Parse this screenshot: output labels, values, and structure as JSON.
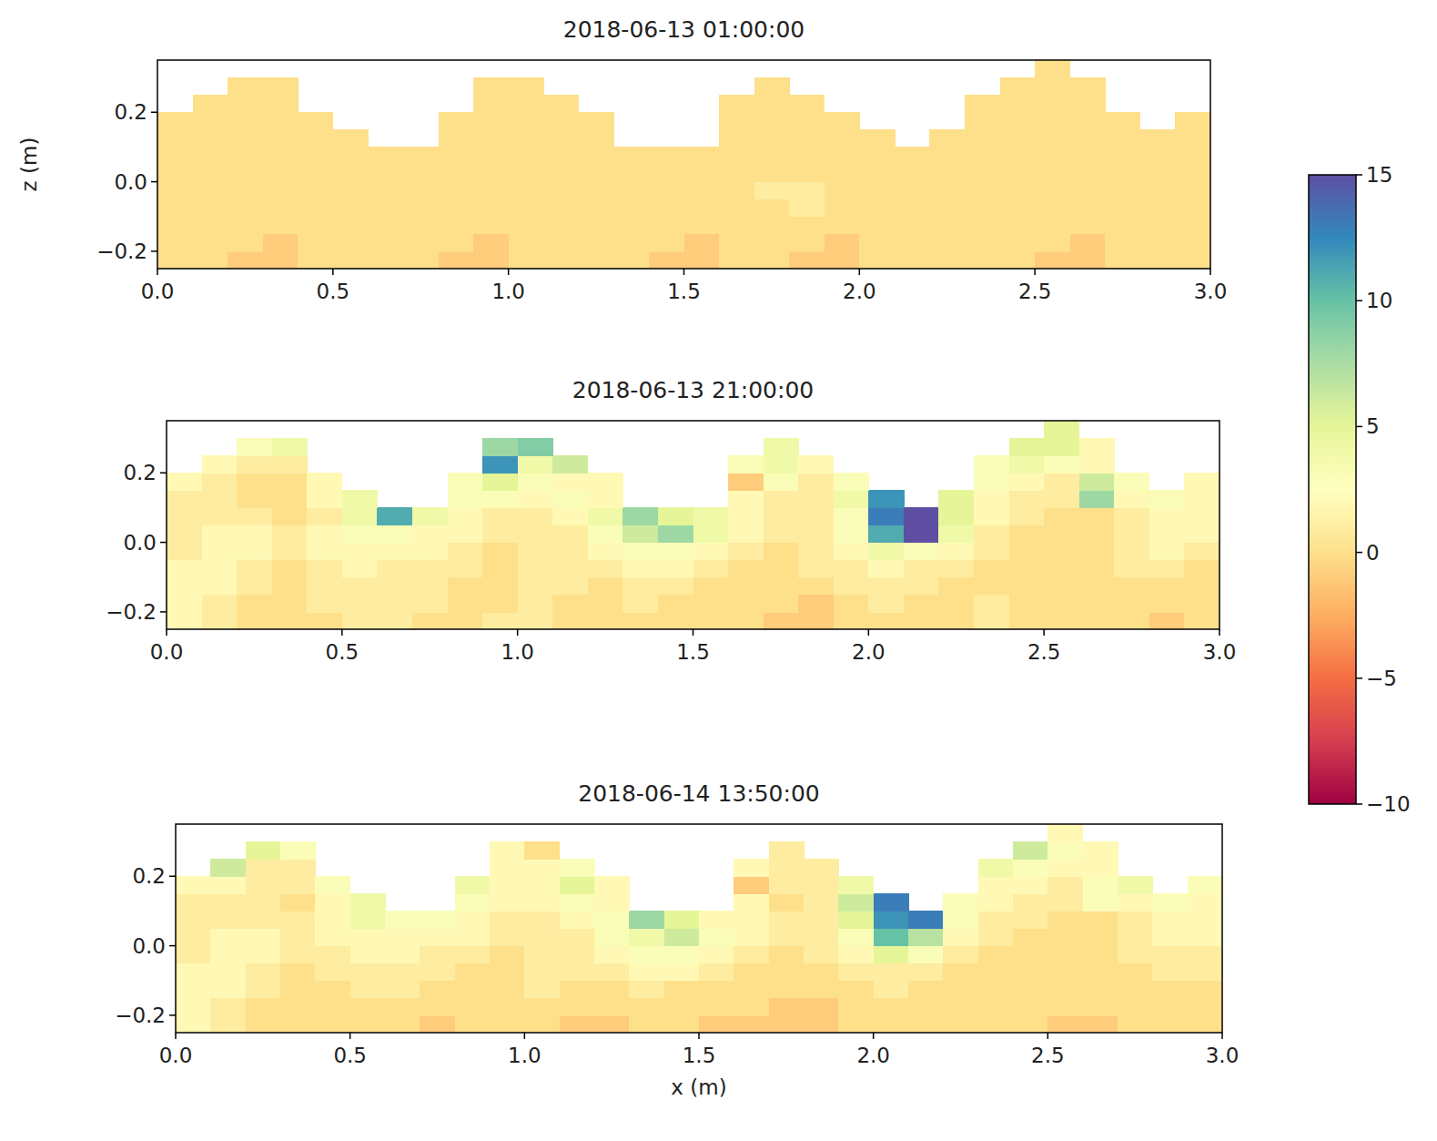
{
  "chart_data": [
    {
      "type": "heatmap",
      "title": "2018-06-13 01:00:00",
      "ylabel": "z (m)",
      "xlim": [
        0,
        3
      ],
      "ylim": [
        -0.25,
        0.35
      ],
      "xticks": [
        {
          "value": 0,
          "label": "0.0"
        },
        0.5,
        {
          "value": 1,
          "label": "1.0"
        },
        1.5,
        {
          "value": 2,
          "label": "2.0"
        },
        2.5,
        {
          "value": 3,
          "label": "3.0"
        }
      ],
      "yticks": [
        {
          "value": -0.2,
          "label": "−0.2"
        },
        {
          "value": 0,
          "label": "0.0"
        },
        0.2
      ],
      "colorbar_lim": [
        -10,
        15
      ],
      "colorbar_ticks": [
        15,
        10,
        5,
        0,
        {
          "value": -5,
          "label": "−5"
        },
        {
          "value": -10,
          "label": "−10"
        }
      ],
      "x": [
        0.05,
        0.15,
        0.25,
        0.35,
        0.45,
        0.55,
        0.65,
        0.75,
        0.85,
        0.95,
        1.05,
        1.15,
        1.25,
        1.35,
        1.45,
        1.55,
        1.65,
        1.75,
        1.85,
        1.95,
        2.05,
        2.15,
        2.25,
        2.35,
        2.45,
        2.55,
        2.65,
        2.75,
        2.85,
        2.95
      ],
      "y": [
        -0.225,
        -0.175,
        -0.125,
        -0.075,
        -0.025,
        0.025,
        0.075,
        0.125,
        0.175,
        0.225,
        0.275,
        0.325
      ],
      "values": [
        [
          0,
          0,
          -1,
          -1,
          0,
          0,
          0,
          0,
          -1,
          -1,
          0,
          0,
          0,
          0,
          -1,
          -1,
          0,
          0,
          -1,
          -1,
          0,
          0,
          0,
          0,
          0,
          -1,
          -1,
          0,
          0,
          0
        ],
        [
          0,
          0,
          0,
          -1,
          0,
          0,
          0,
          0,
          0,
          -1,
          0,
          0,
          0,
          0,
          0,
          -1,
          0,
          0,
          0,
          -1,
          0,
          0,
          0,
          0,
          0,
          0,
          -1,
          0,
          0,
          0
        ],
        [
          0,
          0,
          0,
          0,
          0,
          0,
          0,
          0,
          0,
          0,
          0,
          0,
          0,
          0,
          0,
          0,
          0,
          0,
          0,
          0,
          0,
          0,
          0,
          0,
          0,
          0,
          0,
          0,
          0,
          0
        ],
        [
          0,
          0,
          0,
          0,
          0,
          0,
          0,
          0,
          0,
          0,
          0,
          0,
          0,
          0,
          0,
          0,
          0,
          0,
          1,
          0,
          0,
          0,
          0,
          0,
          0,
          0,
          0,
          0,
          0,
          0
        ],
        [
          0,
          0,
          0,
          0,
          0,
          0,
          0,
          0,
          0,
          0,
          0,
          0,
          0,
          0,
          0,
          0,
          0,
          1,
          1,
          0,
          0,
          0,
          0,
          0,
          0,
          0,
          0,
          0,
          0,
          0
        ],
        [
          0,
          0,
          0,
          0,
          0,
          0,
          0,
          0,
          0,
          0,
          0,
          0,
          0,
          0,
          0,
          0,
          0,
          0,
          0,
          0,
          0,
          0,
          0,
          0,
          0,
          0,
          0,
          0,
          0,
          0
        ],
        [
          0,
          0,
          0,
          0,
          0,
          0,
          0,
          0,
          0,
          0,
          0,
          0,
          0,
          0,
          0,
          0,
          0,
          0,
          0,
          0,
          0,
          0,
          0,
          0,
          0,
          0,
          0,
          0,
          0,
          0
        ],
        [
          0,
          0,
          0,
          0,
          0,
          0,
          null,
          null,
          0,
          0,
          0,
          0,
          0,
          null,
          null,
          null,
          0,
          0,
          0,
          0,
          0,
          null,
          0,
          0,
          0,
          0,
          0,
          0,
          0,
          0
        ],
        [
          0,
          0,
          0,
          0,
          0,
          null,
          null,
          null,
          0,
          0,
          0,
          0,
          0,
          null,
          null,
          null,
          0,
          0,
          0,
          0,
          null,
          null,
          null,
          0,
          0,
          0,
          0,
          0,
          null,
          0
        ],
        [
          null,
          0,
          0,
          0,
          null,
          null,
          null,
          null,
          null,
          0,
          0,
          0,
          null,
          null,
          null,
          null,
          0,
          0,
          0,
          null,
          null,
          null,
          null,
          0,
          0,
          0,
          0,
          null,
          null,
          null
        ],
        [
          null,
          null,
          0,
          0,
          null,
          null,
          null,
          null,
          null,
          0,
          0,
          null,
          null,
          null,
          null,
          null,
          null,
          0,
          null,
          null,
          null,
          null,
          null,
          null,
          0,
          0,
          0,
          null,
          null,
          null
        ],
        [
          null,
          null,
          null,
          null,
          null,
          null,
          null,
          null,
          null,
          null,
          null,
          null,
          null,
          null,
          null,
          null,
          null,
          null,
          null,
          null,
          null,
          null,
          null,
          null,
          null,
          0,
          null,
          null,
          null,
          null
        ]
      ]
    },
    {
      "type": "heatmap",
      "title": "2018-06-13 21:00:00",
      "xlim": [
        0,
        3
      ],
      "ylim": [
        -0.25,
        0.35
      ],
      "xticks": [
        {
          "value": 0,
          "label": "0.0"
        },
        0.5,
        {
          "value": 1,
          "label": "1.0"
        },
        1.5,
        {
          "value": 2,
          "label": "2.0"
        },
        2.5,
        {
          "value": 3,
          "label": "3.0"
        }
      ],
      "yticks": [
        {
          "value": -0.2,
          "label": "−0.2"
        },
        {
          "value": 0,
          "label": "0.0"
        },
        0.2
      ],
      "x": [
        0.05,
        0.15,
        0.25,
        0.35,
        0.45,
        0.55,
        0.65,
        0.75,
        0.85,
        0.95,
        1.05,
        1.15,
        1.25,
        1.35,
        1.45,
        1.55,
        1.65,
        1.75,
        1.85,
        1.95,
        2.05,
        2.15,
        2.25,
        2.35,
        2.45,
        2.55,
        2.65,
        2.75,
        2.85,
        2.95
      ],
      "y": [
        -0.225,
        -0.175,
        -0.125,
        -0.075,
        -0.025,
        0.025,
        0.075,
        0.125,
        0.175,
        0.225,
        0.275,
        0.325
      ],
      "values": [
        [
          2,
          1,
          0,
          0,
          0,
          1,
          1,
          0,
          0,
          1,
          1,
          0,
          0,
          0,
          0,
          0,
          0,
          -1,
          -1,
          0,
          0,
          0,
          0,
          1,
          0,
          0,
          0,
          0,
          -1,
          0
        ],
        [
          2,
          1,
          0,
          0,
          1,
          1,
          1,
          1,
          0,
          0,
          1,
          0,
          0,
          1,
          0,
          0,
          0,
          0,
          -1,
          0,
          1,
          0,
          0,
          1,
          0,
          0,
          0,
          0,
          0,
          0
        ],
        [
          2,
          2,
          1,
          0,
          1,
          1,
          1,
          1,
          0,
          0,
          1,
          1,
          0,
          1,
          1,
          0,
          0,
          0,
          0,
          1,
          1,
          1,
          0,
          0,
          0,
          0,
          0,
          0,
          0,
          0
        ],
        [
          2,
          2,
          1,
          0,
          1,
          2,
          1,
          1,
          1,
          0,
          1,
          1,
          1,
          2,
          2,
          1,
          0,
          0,
          1,
          1,
          2,
          1,
          1,
          0,
          0,
          0,
          0,
          1,
          1,
          0
        ],
        [
          1,
          2,
          2,
          1,
          2,
          2,
          2,
          2,
          1,
          0,
          1,
          1,
          2,
          3,
          3,
          2,
          1,
          0,
          1,
          2,
          4,
          3,
          2,
          1,
          0,
          0,
          0,
          1,
          2,
          1
        ],
        [
          1,
          2,
          2,
          1,
          2,
          3,
          3,
          2,
          2,
          1,
          1,
          1,
          3,
          6,
          8,
          4,
          2,
          1,
          1,
          3,
          11,
          15,
          4,
          1,
          0,
          0,
          0,
          1,
          2,
          2
        ],
        [
          1,
          1,
          1,
          0,
          1,
          4,
          11,
          4,
          2,
          1,
          1,
          2,
          4,
          8,
          5,
          4,
          2,
          1,
          1,
          3,
          13,
          16,
          5,
          2,
          1,
          0,
          0,
          1,
          2,
          2
        ],
        [
          1,
          1,
          0,
          0,
          2,
          4,
          null,
          null,
          3,
          3,
          2,
          3,
          2,
          null,
          null,
          null,
          2,
          1,
          1,
          4,
          12,
          null,
          5,
          2,
          1,
          1,
          8,
          2,
          3,
          2
        ],
        [
          2,
          1,
          0,
          0,
          2,
          null,
          null,
          null,
          3,
          5,
          3,
          2,
          2,
          null,
          null,
          null,
          -1,
          3,
          1,
          3,
          null,
          null,
          null,
          3,
          2,
          1,
          6,
          3,
          null,
          2
        ],
        [
          null,
          2,
          1,
          1,
          null,
          null,
          null,
          null,
          null,
          12,
          4,
          6,
          null,
          null,
          null,
          null,
          3,
          4,
          2,
          null,
          null,
          null,
          null,
          3,
          4,
          3,
          2,
          null,
          null,
          null
        ],
        [
          null,
          null,
          3,
          4,
          null,
          null,
          null,
          null,
          null,
          8,
          9,
          null,
          null,
          null,
          null,
          null,
          null,
          4,
          null,
          null,
          null,
          null,
          null,
          null,
          5,
          5,
          2,
          null,
          null,
          null
        ],
        [
          null,
          null,
          null,
          null,
          null,
          null,
          null,
          null,
          null,
          null,
          null,
          null,
          null,
          null,
          null,
          null,
          null,
          null,
          null,
          null,
          null,
          null,
          null,
          null,
          null,
          5,
          null,
          null,
          null,
          null
        ]
      ]
    },
    {
      "type": "heatmap",
      "title": "2018-06-14 13:50:00",
      "xlabel": "x (m)",
      "xlim": [
        0,
        3
      ],
      "ylim": [
        -0.25,
        0.35
      ],
      "xticks": [
        {
          "value": 0,
          "label": "0.0"
        },
        0.5,
        {
          "value": 1,
          "label": "1.0"
        },
        1.5,
        {
          "value": 2,
          "label": "2.0"
        },
        2.5,
        {
          "value": 3,
          "label": "3.0"
        }
      ],
      "yticks": [
        {
          "value": -0.2,
          "label": "−0.2"
        },
        {
          "value": 0,
          "label": "0.0"
        },
        0.2
      ],
      "x": [
        0.05,
        0.15,
        0.25,
        0.35,
        0.45,
        0.55,
        0.65,
        0.75,
        0.85,
        0.95,
        1.05,
        1.15,
        1.25,
        1.35,
        1.45,
        1.55,
        1.65,
        1.75,
        1.85,
        1.95,
        2.05,
        2.15,
        2.25,
        2.35,
        2.45,
        2.55,
        2.65,
        2.75,
        2.85,
        2.95
      ],
      "y": [
        -0.225,
        -0.175,
        -0.125,
        -0.075,
        -0.025,
        0.025,
        0.075,
        0.125,
        0.175,
        0.225,
        0.275,
        0.325
      ],
      "values": [
        [
          2,
          1,
          0,
          0,
          0,
          0,
          0,
          -1,
          0,
          0,
          0,
          -1,
          -1,
          0,
          0,
          -1,
          -1,
          -1,
          -1,
          0,
          0,
          0,
          0,
          0,
          0,
          -1,
          -1,
          0,
          0,
          0
        ],
        [
          2,
          1,
          0,
          0,
          0,
          0,
          0,
          0,
          0,
          0,
          0,
          0,
          0,
          0,
          0,
          0,
          0,
          -1,
          -1,
          0,
          0,
          0,
          0,
          0,
          0,
          0,
          0,
          0,
          0,
          0
        ],
        [
          2,
          2,
          1,
          0,
          0,
          1,
          1,
          0,
          0,
          0,
          1,
          0,
          0,
          1,
          0,
          0,
          0,
          0,
          0,
          0,
          1,
          0,
          0,
          0,
          0,
          0,
          0,
          0,
          0,
          0
        ],
        [
          2,
          2,
          1,
          0,
          1,
          1,
          1,
          1,
          0,
          0,
          1,
          1,
          1,
          2,
          2,
          1,
          0,
          0,
          0,
          1,
          1,
          1,
          0,
          0,
          0,
          0,
          0,
          0,
          1,
          1
        ],
        [
          1,
          2,
          2,
          1,
          1,
          2,
          2,
          1,
          1,
          0,
          1,
          1,
          2,
          3,
          3,
          2,
          1,
          0,
          1,
          2,
          5,
          3,
          1,
          0,
          0,
          0,
          0,
          1,
          1,
          1
        ],
        [
          1,
          2,
          2,
          1,
          2,
          2,
          2,
          2,
          2,
          1,
          1,
          1,
          3,
          4,
          6,
          3,
          2,
          1,
          1,
          3,
          10,
          7,
          2,
          1,
          0,
          0,
          0,
          1,
          2,
          2
        ],
        [
          1,
          1,
          1,
          1,
          2,
          4,
          3,
          3,
          2,
          1,
          1,
          2,
          3,
          8,
          5,
          2,
          2,
          1,
          1,
          5,
          12,
          13,
          3,
          1,
          1,
          0,
          0,
          1,
          2,
          2
        ],
        [
          1,
          1,
          1,
          0,
          2,
          4,
          null,
          null,
          3,
          2,
          2,
          3,
          2,
          null,
          null,
          null,
          2,
          0,
          1,
          6,
          13,
          null,
          3,
          2,
          1,
          1,
          3,
          2,
          3,
          2
        ],
        [
          2,
          2,
          1,
          1,
          3,
          null,
          null,
          null,
          4,
          2,
          2,
          5,
          2,
          null,
          null,
          null,
          -1,
          1,
          1,
          4,
          null,
          null,
          null,
          2,
          2,
          1,
          3,
          4,
          null,
          3
        ],
        [
          null,
          6,
          1,
          1,
          null,
          null,
          null,
          null,
          null,
          2,
          2,
          3,
          null,
          null,
          null,
          null,
          2,
          1,
          1,
          null,
          null,
          null,
          null,
          4,
          3,
          2,
          2,
          null,
          null,
          null
        ],
        [
          null,
          null,
          5,
          3,
          null,
          null,
          null,
          null,
          null,
          2,
          0,
          null,
          null,
          null,
          null,
          null,
          null,
          1,
          null,
          null,
          null,
          null,
          null,
          null,
          6,
          3,
          2,
          null,
          null,
          null
        ],
        [
          null,
          null,
          null,
          null,
          null,
          null,
          null,
          null,
          null,
          null,
          null,
          null,
          null,
          null,
          null,
          null,
          null,
          null,
          null,
          null,
          null,
          null,
          null,
          null,
          null,
          2,
          null,
          null,
          null,
          null
        ]
      ]
    }
  ]
}
